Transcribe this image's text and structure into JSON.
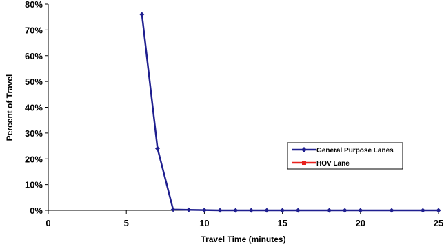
{
  "chart_data": {
    "type": "line",
    "xlabel": "Travel Time (minutes)",
    "ylabel": "Percent of Travel",
    "xlim": [
      0,
      25
    ],
    "ylim": [
      0,
      80
    ],
    "x_ticks": [
      "0",
      "5",
      "10",
      "15",
      "20",
      "25"
    ],
    "x_tick_values": [
      0,
      5,
      10,
      15,
      20,
      25
    ],
    "y_ticks": [
      "0%",
      "10%",
      "20%",
      "30%",
      "40%",
      "50%",
      "60%",
      "70%",
      "80%"
    ],
    "y_tick_values": [
      0,
      10,
      20,
      30,
      40,
      50,
      60,
      70,
      80
    ],
    "grid": false,
    "legend_position": "right",
    "series": [
      {
        "name": "General Purpose Lanes",
        "color": "#1f1f8f",
        "marker": "diamond",
        "x": [
          6,
          7,
          8,
          9,
          10,
          11,
          12,
          13,
          14,
          15,
          16,
          18,
          19,
          20,
          22,
          24,
          25
        ],
        "y": [
          76,
          24,
          0.3,
          0.2,
          0.1,
          0,
          0,
          0,
          0,
          0,
          0,
          0,
          0,
          0,
          0,
          0,
          0
        ]
      },
      {
        "name": "HOV Lane",
        "color": "#e8201c",
        "marker": "square",
        "x": [],
        "y": []
      }
    ]
  }
}
